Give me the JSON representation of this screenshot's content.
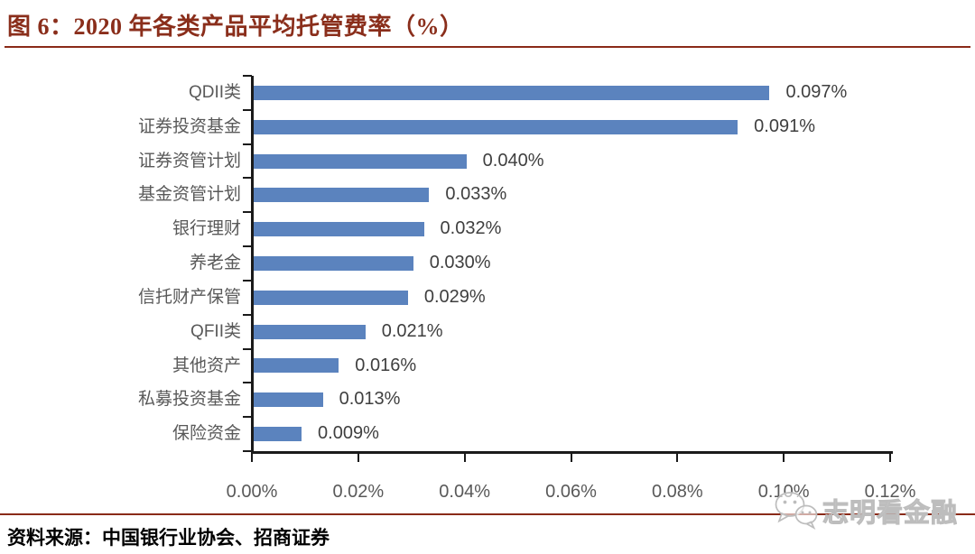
{
  "header": {
    "title": "图 6：2020 年各类产品平均托管费率（%）"
  },
  "footer": {
    "source": "资料来源：中国银行业协会、招商证券"
  },
  "watermark": {
    "icon": "wechat-icon",
    "text": "志明看金融"
  },
  "colors": {
    "bar": "#5B83BE",
    "title": "#8A2E1B",
    "divider": "#8A2A18",
    "category_label": "#595959",
    "value_label": "#3F3F3F",
    "axis": "#1A1A1A",
    "watermark": "#C6C6C6"
  },
  "chart_data": {
    "type": "bar",
    "orientation": "horizontal",
    "title": "2020 年各类产品平均托管费率（%）",
    "categories": [
      "QDII类",
      "证券投资基金",
      "证券资管计划",
      "基金资管计划",
      "银行理财",
      "养老金",
      "信托财产保管",
      "QFII类",
      "其他资产",
      "私募投资基金",
      "保险资金"
    ],
    "values": [
      0.097,
      0.091,
      0.04,
      0.033,
      0.032,
      0.03,
      0.029,
      0.021,
      0.016,
      0.013,
      0.009
    ],
    "value_labels": [
      "0.097%",
      "0.091%",
      "0.040%",
      "0.033%",
      "0.032%",
      "0.030%",
      "0.029%",
      "0.021%",
      "0.016%",
      "0.013%",
      "0.009%"
    ],
    "xlim": [
      0,
      0.12
    ],
    "x_tick_step": 0.02,
    "x_tick_labels": [
      "0.00%",
      "0.02%",
      "0.04%",
      "0.06%",
      "0.08%",
      "0.10%",
      "0.12%"
    ],
    "xlabel": "",
    "ylabel": "",
    "grid": false,
    "legend": false,
    "data_labels": true
  }
}
